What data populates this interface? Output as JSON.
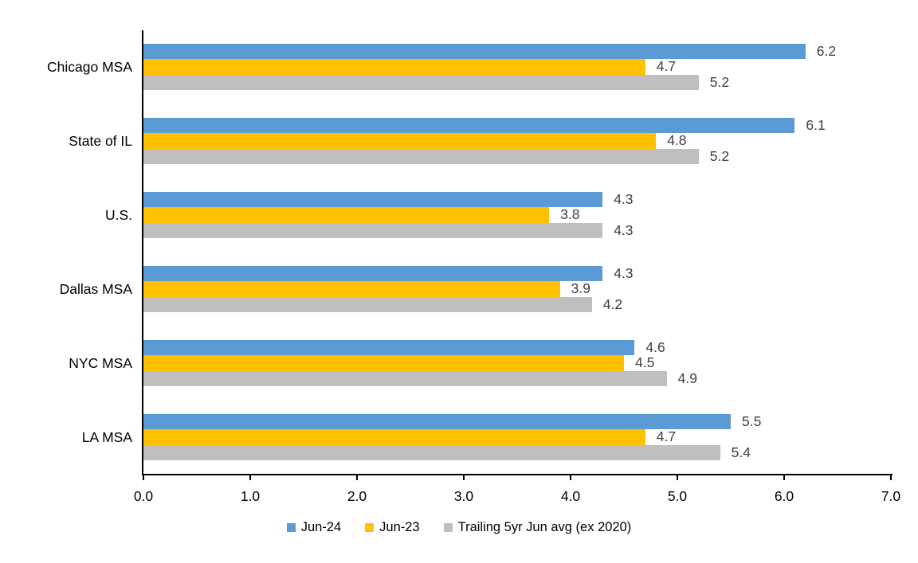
{
  "chart_data": {
    "type": "bar",
    "orientation": "horizontal",
    "title": "",
    "categories": [
      "Chicago MSA",
      "State of IL",
      "U.S.",
      "Dallas MSA",
      "NYC MSA",
      "LA MSA"
    ],
    "series": [
      {
        "name": "Jun-24",
        "color": "#5B9BD5",
        "values": [
          6.2,
          6.1,
          4.3,
          4.3,
          4.6,
          5.5
        ]
      },
      {
        "name": "Jun-23",
        "color": "#FFC000",
        "values": [
          4.7,
          4.8,
          3.8,
          3.9,
          4.5,
          4.7
        ]
      },
      {
        "name": "Trailing 5yr Jun avg (ex 2020)",
        "color": "#BFBFBF",
        "values": [
          5.2,
          5.2,
          4.3,
          4.2,
          4.9,
          5.4
        ]
      }
    ],
    "x_axis": {
      "min": 0.0,
      "max": 7.0,
      "tick_step": 1.0,
      "tick_labels": [
        "0.0",
        "1.0",
        "2.0",
        "3.0",
        "4.0",
        "5.0",
        "6.0",
        "7.0"
      ]
    },
    "value_labels_shown": true,
    "data_label_color": "#404040",
    "axis_line_color": "#000000",
    "legend_position": "bottom",
    "grid": false
  }
}
